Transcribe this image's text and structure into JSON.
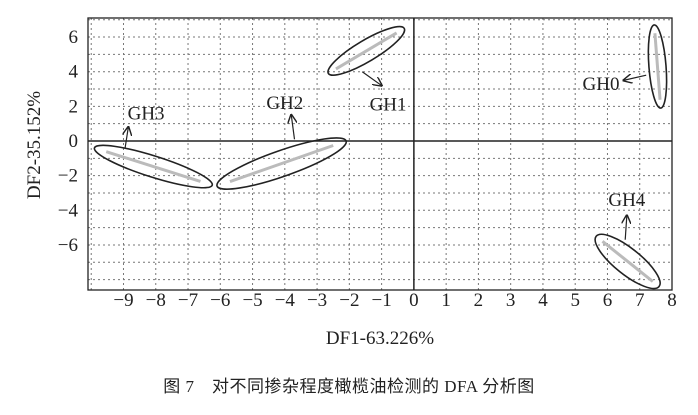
{
  "chart_data": {
    "type": "scatter",
    "xlabel": "DF1-63.226%",
    "ylabel": "DF2-35.152%",
    "xlim": [
      -10.1,
      8
    ],
    "ylim": [
      -8.6,
      7.1
    ],
    "xticks": [
      -9,
      -8,
      -7,
      -6,
      -5,
      -4,
      -3,
      -2,
      -1,
      0,
      1,
      2,
      3,
      4,
      5,
      6,
      7,
      8
    ],
    "xtick_labels": [
      "−9",
      "−8",
      "−7",
      "−6",
      "−5",
      "−4",
      "−3",
      "−2",
      "−1",
      "0",
      "1",
      "2",
      "3",
      "4",
      "5",
      "6",
      "7",
      "8"
    ],
    "yticks": [
      6,
      4,
      2,
      0,
      -2,
      -4,
      -6
    ],
    "ytick_labels": [
      "6",
      "4",
      "2",
      "0",
      "−2",
      "−4",
      "−6"
    ],
    "grid": true,
    "groups": [
      {
        "name": "GH0",
        "ellipse": {
          "from": [
            7.45,
            6.7
          ],
          "to": [
            7.65,
            1.9
          ],
          "minor": 0.42
        },
        "label_at": [
          5.8,
          3.3
        ],
        "arrow": [
          [
            7.2,
            3.8
          ],
          [
            6.5,
            3.5
          ]
        ]
      },
      {
        "name": "GH1",
        "ellipse": {
          "from": [
            -2.65,
            3.9
          ],
          "to": [
            -0.3,
            6.5
          ],
          "minor": 0.55
        },
        "label_at": [
          -0.8,
          2.1
        ],
        "arrow": [
          [
            -1.6,
            4.0
          ],
          [
            -1.0,
            3.2
          ]
        ]
      },
      {
        "name": "GH2",
        "ellipse": {
          "from": [
            -6.1,
            -2.6
          ],
          "to": [
            -2.1,
            0
          ],
          "minor": 0.7
        },
        "label_at": [
          -4.0,
          2.2
        ],
        "arrow": [
          [
            -3.7,
            0.1
          ],
          [
            -3.8,
            1.5
          ]
        ]
      },
      {
        "name": "GH3",
        "ellipse": {
          "from": [
            -9.9,
            -0.4
          ],
          "to": [
            -6.25,
            -2.55
          ],
          "minor": 0.55
        },
        "label_at": [
          -8.3,
          1.6
        ],
        "arrow": [
          [
            -8.95,
            -0.4
          ],
          [
            -8.85,
            0.8
          ]
        ]
      },
      {
        "name": "GH4",
        "ellipse": {
          "from": [
            5.65,
            -5.5
          ],
          "to": [
            7.6,
            -8.4
          ],
          "minor": 0.7
        },
        "label_at": [
          6.6,
          -3.4
        ],
        "arrow": [
          [
            6.55,
            -5.7
          ],
          [
            6.6,
            -4.3
          ]
        ]
      }
    ]
  },
  "caption": "图 7　对不同掺杂程度橄榄油检测的 DFA 分析图"
}
